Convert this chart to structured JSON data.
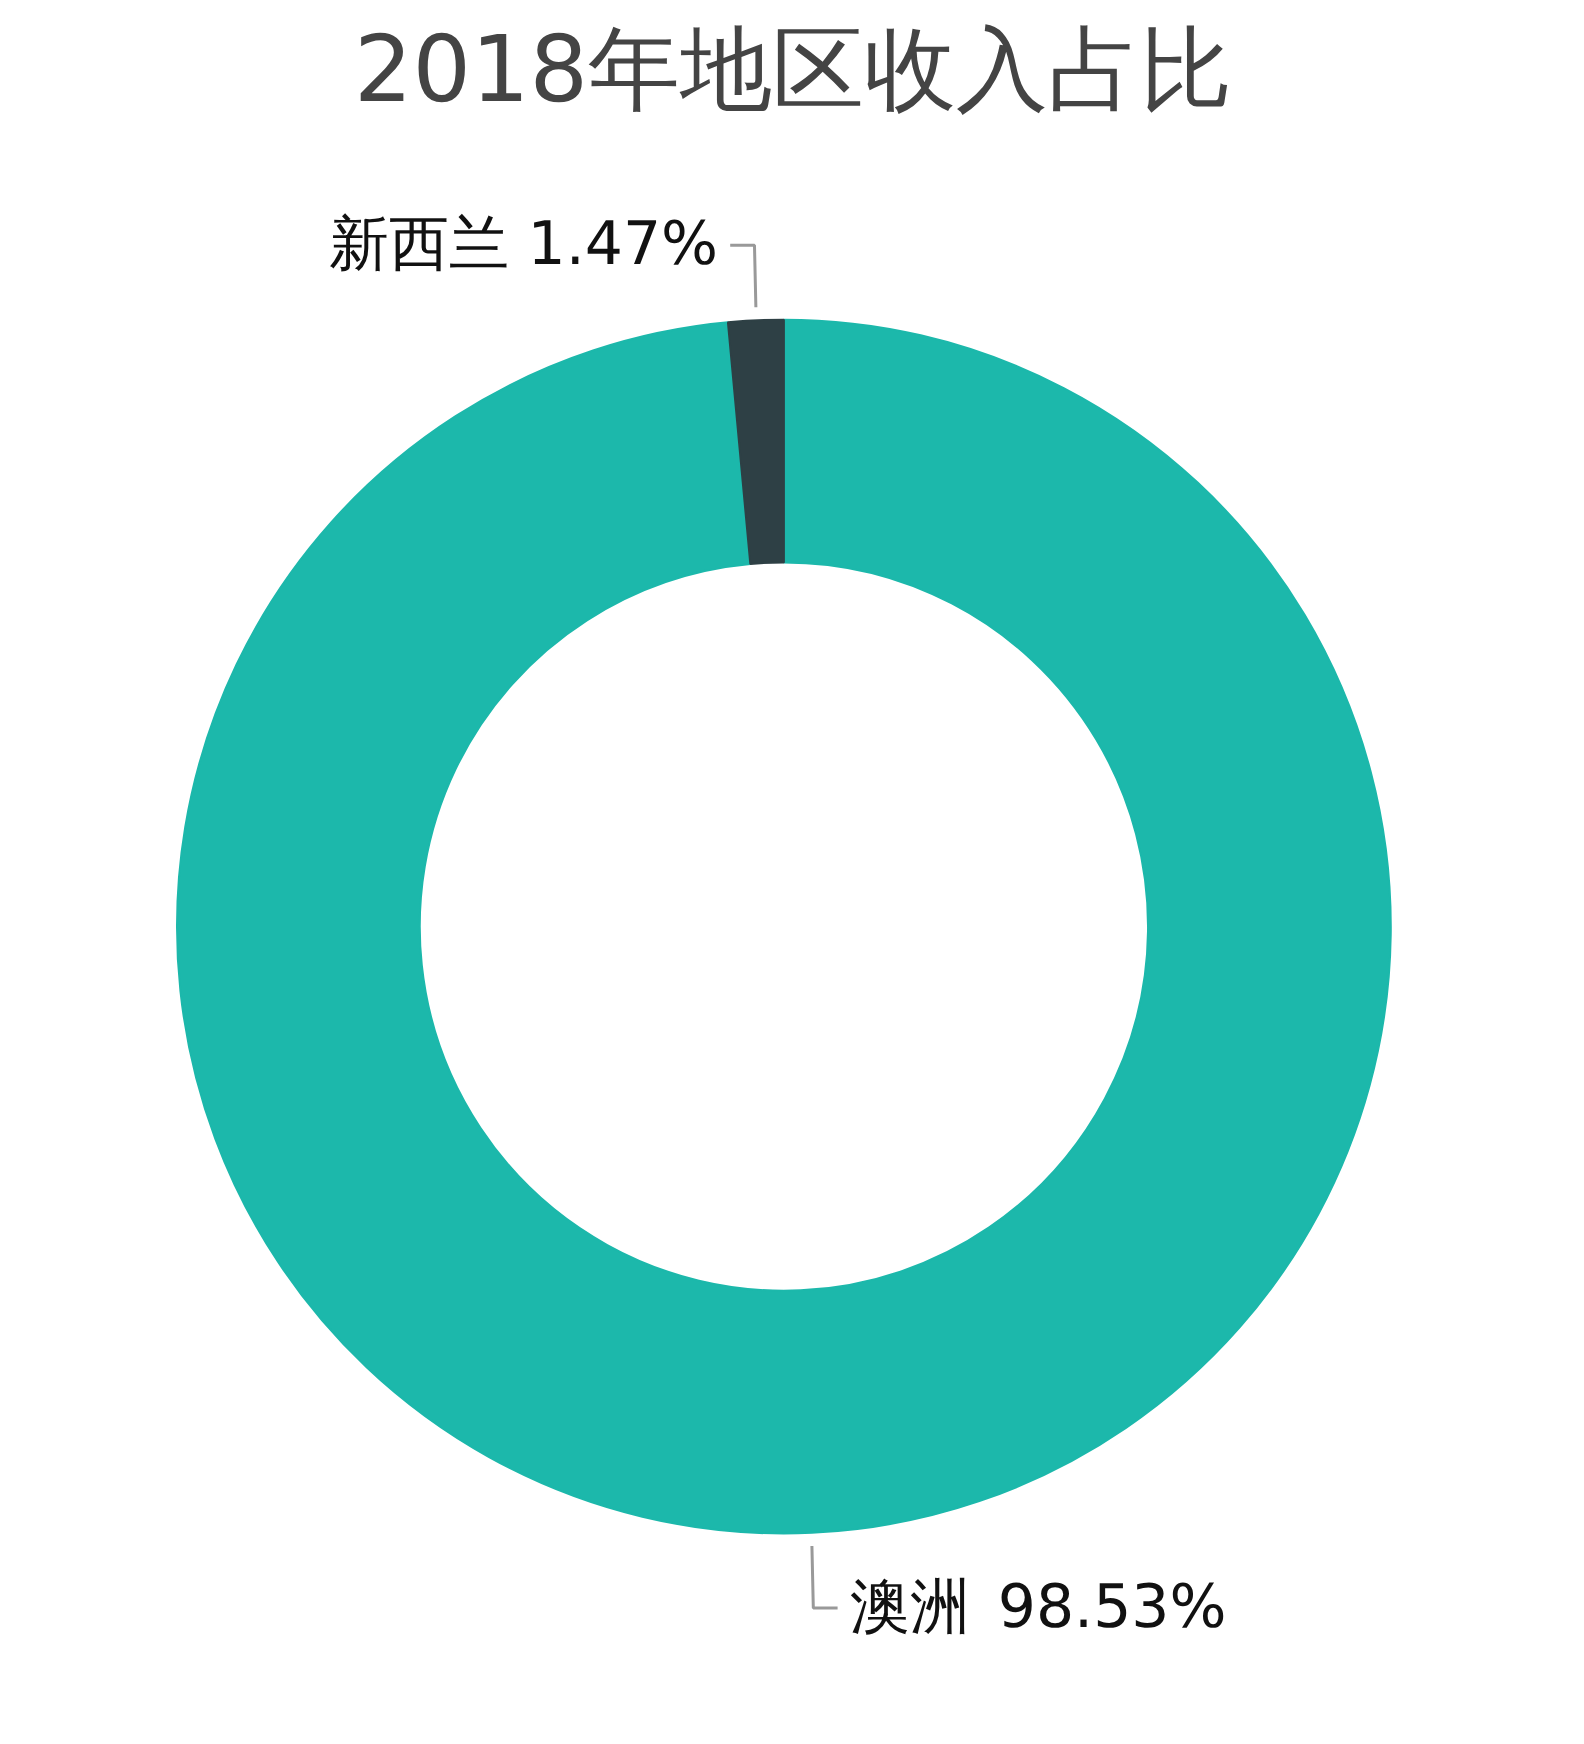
{
  "chart_data": {
    "type": "donut",
    "title": "2018年地区收入占比",
    "categories": [
      "澳洲",
      "新西兰"
    ],
    "values": [
      98.53,
      1.47
    ],
    "colors": [
      "#1cb8ab",
      "#2e4045"
    ],
    "value_labels": [
      "98.53%",
      "1.47%"
    ],
    "legend": false
  }
}
